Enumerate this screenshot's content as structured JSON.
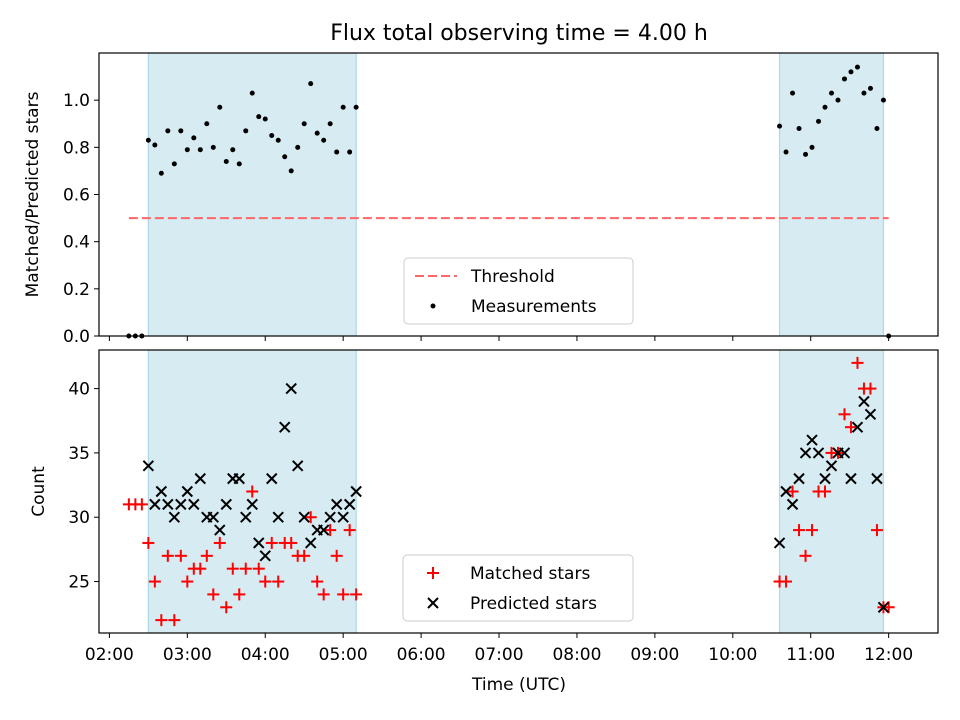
{
  "title": "Flux total observing time = 4.00 h",
  "xlabel": "Time (UTC)",
  "colors": {
    "band": "#add8e6",
    "threshold": "#ff6666",
    "measurement": "#000000",
    "matched": "#ff0000",
    "predicted": "#000000"
  },
  "chart_data": [
    {
      "type": "scatter",
      "panel": "top",
      "ylabel": "Matched/Predicted stars",
      "xlim": [
        "01:52",
        "12:38"
      ],
      "ylim": [
        0,
        1.2
      ],
      "yticks": [
        0.0,
        0.2,
        0.4,
        0.6,
        0.8,
        1.0
      ],
      "ytick_labels": [
        "0.0",
        "0.2",
        "0.4",
        "0.6",
        "0.8",
        "1.0"
      ],
      "shaded_intervals": [
        [
          "02:30",
          "05:10"
        ],
        [
          "10:36",
          "11:56"
        ]
      ],
      "threshold": {
        "name": "Threshold",
        "value": 0.5,
        "x_range": [
          "02:15",
          "12:00"
        ],
        "style": "dashed"
      },
      "legend": {
        "entries": [
          "Threshold",
          "Measurements"
        ],
        "placement": "lower center"
      },
      "series": [
        {
          "name": "Measurements",
          "marker": "dot",
          "x": [
            "02:15",
            "02:20",
            "02:25",
            "02:30",
            "02:35",
            "02:40",
            "02:45",
            "02:50",
            "02:55",
            "03:00",
            "03:05",
            "03:10",
            "03:15",
            "03:20",
            "03:25",
            "03:30",
            "03:35",
            "03:40",
            "03:45",
            "03:50",
            "03:55",
            "04:00",
            "04:05",
            "04:10",
            "04:15",
            "04:20",
            "04:25",
            "04:30",
            "04:35",
            "04:40",
            "04:45",
            "04:50",
            "04:55",
            "05:00",
            "05:05",
            "05:10",
            "10:36",
            "10:41",
            "10:46",
            "10:51",
            "10:56",
            "11:01",
            "11:06",
            "11:11",
            "11:16",
            "11:21",
            "11:26",
            "11:31",
            "11:36",
            "11:41",
            "11:46",
            "11:51",
            "11:56",
            "12:00"
          ],
          "y": [
            0.0,
            0.0,
            0.0,
            0.83,
            0.81,
            0.69,
            0.87,
            0.73,
            0.87,
            0.79,
            0.84,
            0.79,
            0.9,
            0.8,
            0.97,
            0.74,
            0.79,
            0.73,
            0.87,
            1.03,
            0.93,
            0.92,
            0.85,
            0.83,
            0.76,
            0.7,
            0.8,
            0.9,
            1.07,
            0.86,
            0.83,
            0.9,
            0.78,
            0.97,
            0.78,
            0.97,
            0.89,
            0.78,
            1.03,
            0.88,
            0.77,
            0.8,
            0.91,
            0.97,
            1.03,
            1.0,
            1.09,
            1.12,
            1.14,
            1.03,
            1.05,
            0.88,
            1.0,
            0.0
          ]
        }
      ]
    },
    {
      "type": "scatter",
      "panel": "bottom",
      "ylabel": "Count",
      "xlim": [
        "01:52",
        "12:38"
      ],
      "ylim": [
        21,
        43
      ],
      "yticks": [
        25,
        30,
        35,
        40
      ],
      "ytick_labels": [
        "25",
        "30",
        "35",
        "40"
      ],
      "xticks": [
        "02:00",
        "03:00",
        "04:00",
        "05:00",
        "06:00",
        "07:00",
        "08:00",
        "09:00",
        "10:00",
        "11:00",
        "12:00"
      ],
      "shaded_intervals": [
        [
          "02:30",
          "05:10"
        ],
        [
          "10:36",
          "11:56"
        ]
      ],
      "legend": {
        "entries": [
          "Matched stars",
          "Predicted stars"
        ],
        "placement": "lower center"
      },
      "series": [
        {
          "name": "Matched stars",
          "marker": "plus",
          "x": [
            "02:15",
            "02:20",
            "02:25",
            "02:30",
            "02:35",
            "02:40",
            "02:45",
            "02:50",
            "02:55",
            "03:00",
            "03:05",
            "03:10",
            "03:15",
            "03:20",
            "03:25",
            "03:30",
            "03:35",
            "03:40",
            "03:45",
            "03:50",
            "03:55",
            "04:00",
            "04:05",
            "04:10",
            "04:15",
            "04:20",
            "04:25",
            "04:30",
            "04:35",
            "04:40",
            "04:45",
            "04:50",
            "04:55",
            "05:00",
            "05:05",
            "05:10",
            "10:36",
            "10:41",
            "10:46",
            "10:51",
            "10:56",
            "11:01",
            "11:06",
            "11:11",
            "11:16",
            "11:21",
            "11:26",
            "11:31",
            "11:36",
            "11:41",
            "11:46",
            "11:51",
            "11:56",
            "12:00"
          ],
          "y": [
            31,
            31,
            31,
            28,
            25,
            22,
            27,
            22,
            27,
            25,
            26,
            26,
            27,
            24,
            28,
            23,
            26,
            24,
            26,
            32,
            26,
            25,
            28,
            25,
            28,
            28,
            27,
            27,
            30,
            25,
            24,
            29,
            27,
            24,
            29,
            24,
            25,
            25,
            32,
            29,
            27,
            29,
            32,
            32,
            35,
            35,
            38,
            37,
            42,
            40,
            40,
            29,
            23,
            23
          ]
        },
        {
          "name": "Predicted stars",
          "marker": "x",
          "x": [
            "02:30",
            "02:35",
            "02:40",
            "02:45",
            "02:50",
            "02:55",
            "03:00",
            "03:05",
            "03:10",
            "03:15",
            "03:20",
            "03:25",
            "03:30",
            "03:35",
            "03:40",
            "03:45",
            "03:50",
            "03:55",
            "04:00",
            "04:05",
            "04:10",
            "04:15",
            "04:20",
            "04:25",
            "04:30",
            "04:35",
            "04:40",
            "04:45",
            "04:50",
            "04:55",
            "05:00",
            "05:05",
            "05:10",
            "10:36",
            "10:41",
            "10:46",
            "10:51",
            "10:56",
            "11:01",
            "11:06",
            "11:11",
            "11:16",
            "11:21",
            "11:26",
            "11:31",
            "11:36",
            "11:41",
            "11:46",
            "11:51",
            "11:56"
          ],
          "y": [
            34,
            31,
            32,
            31,
            30,
            31,
            32,
            31,
            33,
            30,
            30,
            29,
            31,
            33,
            33,
            30,
            31,
            28,
            27,
            33,
            30,
            37,
            40,
            34,
            30,
            28,
            29,
            29,
            30,
            31,
            30,
            31,
            32,
            28,
            32,
            31,
            33,
            35,
            36,
            35,
            33,
            34,
            35,
            35,
            33,
            37,
            39,
            38,
            33,
            23
          ]
        }
      ]
    }
  ]
}
